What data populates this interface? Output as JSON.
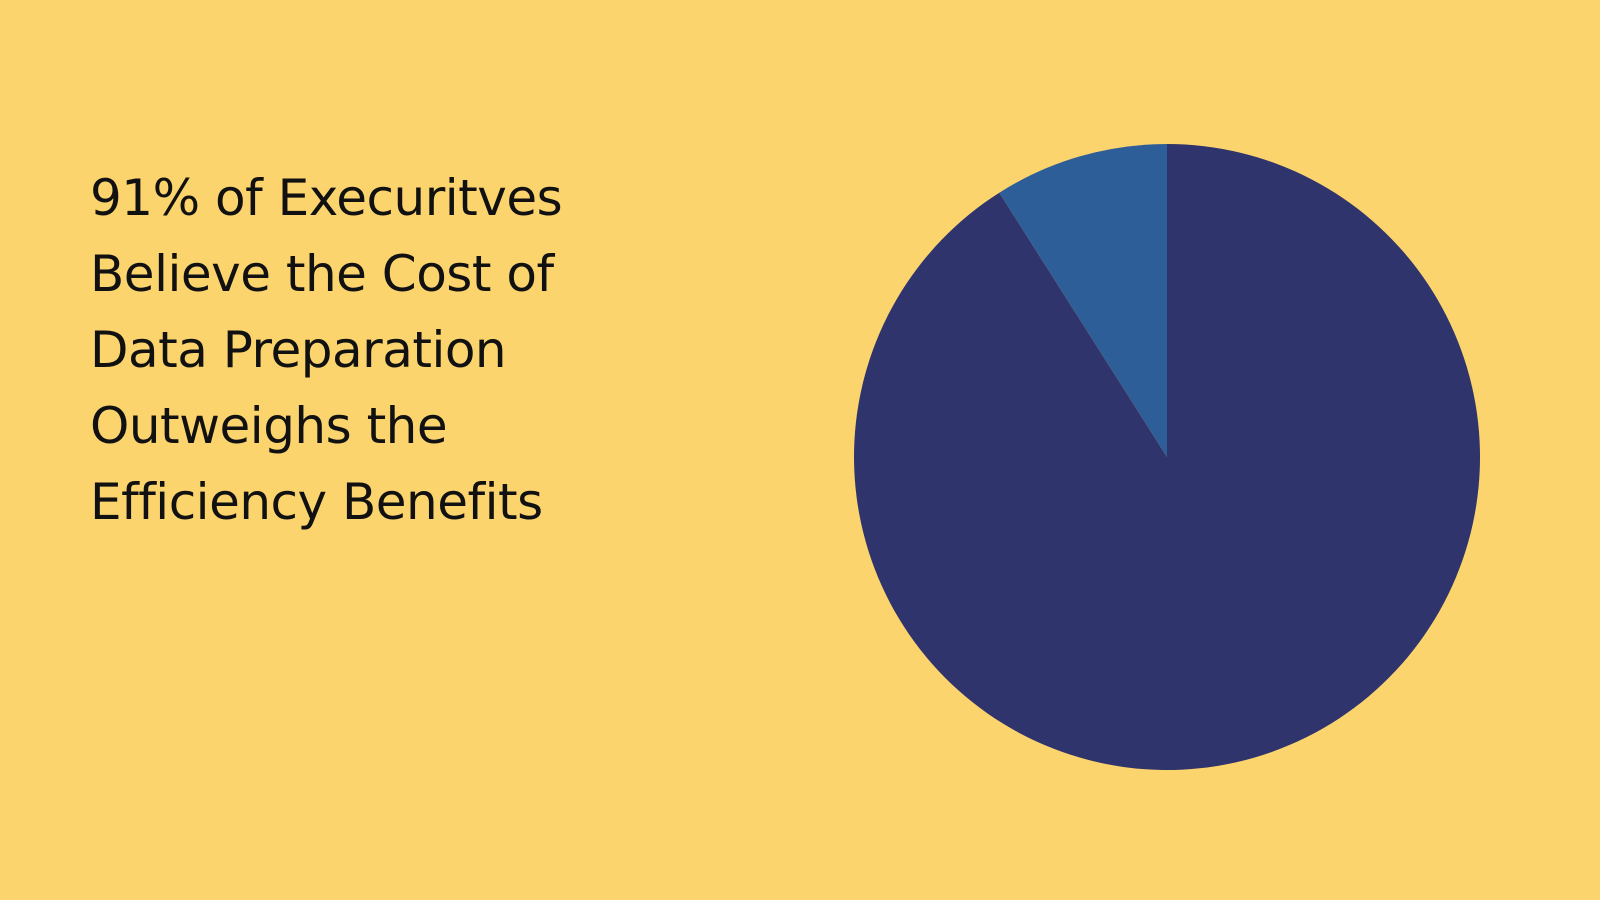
{
  "colors": {
    "background": "#FBD46E",
    "text": "#111111",
    "slice_primary": "#30346C",
    "slice_secondary": "#2E5E97"
  },
  "headline": {
    "lines": [
      "91% of Execuritves",
      "Believe the Cost of",
      "Data Preparation",
      "Outweighs the",
      "Efficiency Benefits"
    ]
  },
  "chart_data": {
    "type": "pie",
    "values": [
      91,
      9
    ],
    "start": "12 o'clock, clockwise",
    "legend": "none"
  }
}
